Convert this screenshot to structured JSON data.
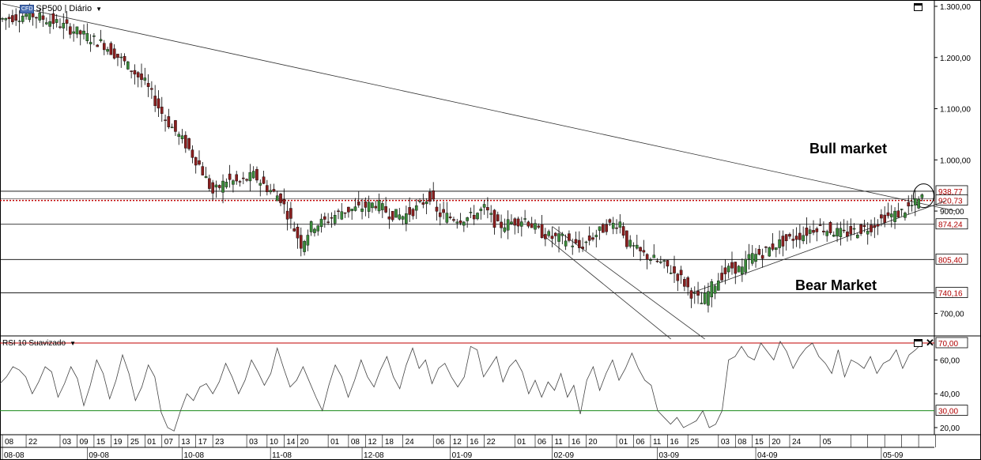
{
  "instrument": {
    "badge": "CFD",
    "title": "SP500 | Diário"
  },
  "rsi_panel": {
    "title": "RSI 10 Suavizado"
  },
  "annotations": {
    "bull": "Bull market",
    "bear": "Bear Market"
  },
  "chart_data": [
    {
      "type": "candlestick",
      "title": "SP500 | Diário",
      "y_ticks": [
        "1.300,00",
        "1.200,00",
        "1.100,00",
        "1.000,00",
        "900,00",
        "700,00"
      ],
      "ylim": [
        650,
        1310
      ],
      "level_labels": [
        {
          "value": 938.77,
          "label": "938,77",
          "style": "solid"
        },
        {
          "value": 920.73,
          "label": "920,73",
          "style": "dotted"
        },
        {
          "value": 874.24,
          "label": "874,24",
          "style": "solid"
        },
        {
          "value": 805.4,
          "label": "805,40",
          "style": "solid"
        },
        {
          "value": 740.16,
          "label": "740,16",
          "style": "solid"
        }
      ],
      "close_path": [
        [
          0,
          1275
        ],
        [
          8,
          1285
        ],
        [
          15,
          1270
        ],
        [
          22,
          1250
        ],
        [
          30,
          1225
        ],
        [
          36,
          1190
        ],
        [
          42,
          1150
        ],
        [
          48,
          1080
        ],
        [
          54,
          1030
        ],
        [
          58,
          990
        ],
        [
          62,
          935
        ],
        [
          66,
          960
        ],
        [
          70,
          955
        ],
        [
          74,
          970
        ],
        [
          78,
          945
        ],
        [
          82,
          925
        ],
        [
          85,
          880
        ],
        [
          88,
          835
        ],
        [
          91,
          870
        ],
        [
          95,
          880
        ],
        [
          100,
          900
        ],
        [
          105,
          905
        ],
        [
          110,
          915
        ],
        [
          114,
          895
        ],
        [
          118,
          890
        ],
        [
          122,
          905
        ],
        [
          126,
          930
        ],
        [
          128,
          895
        ],
        [
          132,
          888
        ],
        [
          135,
          885
        ],
        [
          138,
          888
        ],
        [
          142,
          905
        ],
        [
          146,
          870
        ],
        [
          150,
          878
        ],
        [
          154,
          885
        ],
        [
          158,
          860
        ],
        [
          162,
          848
        ],
        [
          166,
          845
        ],
        [
          170,
          828
        ],
        [
          174,
          850
        ],
        [
          178,
          870
        ],
        [
          182,
          878
        ],
        [
          184,
          838
        ],
        [
          188,
          818
        ],
        [
          192,
          805
        ],
        [
          196,
          790
        ],
        [
          200,
          768
        ],
        [
          203,
          740
        ],
        [
          206,
          720
        ],
        [
          209,
          752
        ],
        [
          212,
          775
        ],
        [
          215,
          790
        ],
        [
          218,
          785
        ],
        [
          220,
          810
        ],
        [
          224,
          818
        ],
        [
          228,
          835
        ],
        [
          232,
          845
        ],
        [
          236,
          855
        ],
        [
          240,
          870
        ],
        [
          244,
          862
        ],
        [
          248,
          855
        ],
        [
          252,
          862
        ],
        [
          256,
          870
        ],
        [
          260,
          888
        ],
        [
          264,
          895
        ],
        [
          268,
          910
        ],
        [
          271,
          925
        ]
      ],
      "resistance_line": {
        "from": [
          0,
          1305
        ],
        "to": [
          281,
          900
        ]
      },
      "support_line": {
        "from": [
          203,
          740
        ],
        "to": [
          278,
          920
        ]
      },
      "bear_channel": [
        {
          "from": [
            162,
            870
          ],
          "to": [
            207,
            650
          ]
        },
        {
          "from": [
            159,
            855
          ],
          "to": [
            197,
            650
          ]
        }
      ],
      "highlight_circle": {
        "x": 271,
        "y": 930
      }
    },
    {
      "type": "line",
      "title": "RSI 10 Suavizado",
      "y_ticks": [
        "70,00",
        "60,00",
        "40,00",
        "30,00",
        "20,00"
      ],
      "ylim": [
        15,
        72
      ],
      "levels": [
        70,
        30
      ],
      "values": [
        46,
        50,
        56,
        54,
        50,
        40,
        47,
        56,
        53,
        38,
        46,
        56,
        49,
        33,
        45,
        60,
        52,
        37,
        48,
        63,
        52,
        36,
        44,
        57,
        50,
        29,
        20,
        18,
        30,
        40,
        36,
        44,
        46,
        40,
        47,
        58,
        50,
        40,
        48,
        60,
        53,
        45,
        52,
        67,
        55,
        44,
        48,
        56,
        47,
        38,
        30,
        45,
        57,
        50,
        38,
        48,
        60,
        50,
        44,
        54,
        62,
        50,
        43,
        57,
        67,
        55,
        60,
        46,
        55,
        58,
        50,
        44,
        50,
        68,
        66,
        50,
        56,
        62,
        47,
        56,
        60,
        53,
        40,
        48,
        38,
        47,
        42,
        52,
        38,
        45,
        28,
        48,
        56,
        42,
        52,
        60,
        48,
        55,
        64,
        55,
        48,
        45,
        30,
        26,
        22,
        26,
        20,
        22,
        24,
        30,
        20,
        22,
        30,
        60,
        62,
        68,
        62,
        60,
        70,
        65,
        60,
        71,
        65,
        55,
        62,
        67,
        70,
        62,
        58,
        52,
        66,
        50,
        60,
        58,
        55,
        62,
        52,
        58,
        60,
        66,
        55,
        63,
        66,
        70
      ]
    }
  ],
  "x_axis": {
    "days": [
      {
        "pos": 0,
        "label": "08"
      },
      {
        "pos": 7,
        "label": "22"
      },
      {
        "pos": 17,
        "label": "03"
      },
      {
        "pos": 22,
        "label": "09"
      },
      {
        "pos": 27,
        "label": "15"
      },
      {
        "pos": 32,
        "label": "19"
      },
      {
        "pos": 37,
        "label": "25"
      },
      {
        "pos": 42,
        "label": "01"
      },
      {
        "pos": 47,
        "label": "07"
      },
      {
        "pos": 52,
        "label": "13"
      },
      {
        "pos": 57,
        "label": "17"
      },
      {
        "pos": 62,
        "label": "23"
      },
      {
        "pos": 72,
        "label": "03"
      },
      {
        "pos": 78,
        "label": "10"
      },
      {
        "pos": 83,
        "label": "14"
      },
      {
        "pos": 87,
        "label": "20"
      },
      {
        "pos": 96,
        "label": "01"
      },
      {
        "pos": 102,
        "label": "08"
      },
      {
        "pos": 107,
        "label": "12"
      },
      {
        "pos": 112,
        "label": "18"
      },
      {
        "pos": 118,
        "label": "24"
      },
      {
        "pos": 127,
        "label": "06"
      },
      {
        "pos": 132,
        "label": "12"
      },
      {
        "pos": 137,
        "label": "16"
      },
      {
        "pos": 142,
        "label": "22"
      },
      {
        "pos": 151,
        "label": "01"
      },
      {
        "pos": 157,
        "label": "06"
      },
      {
        "pos": 162,
        "label": "11"
      },
      {
        "pos": 167,
        "label": "16"
      },
      {
        "pos": 172,
        "label": "20"
      },
      {
        "pos": 181,
        "label": "01"
      },
      {
        "pos": 186,
        "label": "06"
      },
      {
        "pos": 191,
        "label": "11"
      },
      {
        "pos": 196,
        "label": "16"
      },
      {
        "pos": 202,
        "label": "25"
      },
      {
        "pos": 211,
        "label": "03"
      },
      {
        "pos": 216,
        "label": "08"
      },
      {
        "pos": 221,
        "label": "15"
      },
      {
        "pos": 226,
        "label": "20"
      },
      {
        "pos": 232,
        "label": "24"
      },
      {
        "pos": 241,
        "label": "05"
      }
    ],
    "months": [
      {
        "pos": 0,
        "label": "08-08"
      },
      {
        "pos": 25,
        "label": "09-08"
      },
      {
        "pos": 53,
        "label": "10-08"
      },
      {
        "pos": 79,
        "label": "11-08"
      },
      {
        "pos": 106,
        "label": "12-08"
      },
      {
        "pos": 132,
        "label": "01-09"
      },
      {
        "pos": 162,
        "label": "02-09"
      },
      {
        "pos": 193,
        "label": "03-09"
      },
      {
        "pos": 222,
        "label": "04-09"
      },
      {
        "pos": 259,
        "label": "05-09"
      }
    ]
  },
  "colors": {
    "up": "#3a8a3a",
    "down": "#8a1f1f",
    "overbought": "#c00000",
    "oversold": "#1a8a1a",
    "level_label": "#b00000",
    "grid": "#000000"
  }
}
